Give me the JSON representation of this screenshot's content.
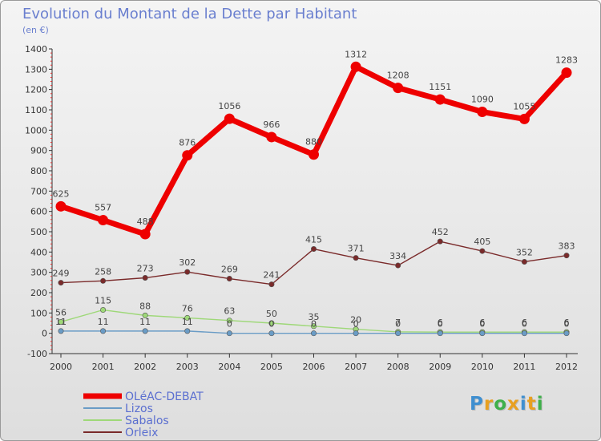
{
  "chart_data": {
    "type": "line",
    "title": "Evolution du Montant de la Dette par Habitant",
    "subtitle": "(en €)",
    "categories": [
      "2000",
      "2001",
      "2002",
      "2003",
      "2004",
      "2005",
      "2006",
      "2007",
      "2008",
      "2009",
      "2010",
      "2011",
      "2012"
    ],
    "ylim": [
      -100,
      1400
    ],
    "yticks": [
      -100,
      0,
      100,
      200,
      300,
      400,
      500,
      600,
      700,
      800,
      900,
      1000,
      1100,
      1200,
      1300,
      1400
    ],
    "grid": false,
    "legend_position": "bottom-left",
    "series": [
      {
        "name": "Orleix",
        "color": "#7a2a2a",
        "values": [
          249,
          258,
          273,
          302,
          269,
          241,
          415,
          371,
          334,
          452,
          405,
          352,
          383
        ],
        "labels": [
          "249",
          "258",
          "273",
          "302",
          "269",
          "241",
          "415",
          "371",
          "334",
          "452",
          "405",
          "352",
          "383"
        ]
      },
      {
        "name": "Sabalos",
        "color": "#9ed878",
        "values": [
          56,
          115,
          88,
          76,
          63,
          50,
          35,
          20,
          7,
          6,
          6,
          6,
          6
        ],
        "labels": [
          "56",
          "115",
          "88",
          "76",
          "63",
          "50",
          "35",
          "20",
          "7",
          "6",
          "6",
          "6",
          "6"
        ]
      },
      {
        "name": "Lizos",
        "color": "#6a9cc6",
        "values": [
          11,
          11,
          11,
          11,
          0,
          0,
          0,
          0,
          0,
          0,
          0,
          0,
          0
        ],
        "labels": [
          "11",
          "11",
          "11",
          "11",
          "0",
          "0",
          "0",
          "0",
          "0",
          "0",
          "0",
          "0",
          "0"
        ]
      },
      {
        "name": "OLéAC-DEBAT",
        "color": "#ee0000",
        "values": [
          625,
          557,
          488,
          876,
          1056,
          966,
          880,
          1312,
          1208,
          1151,
          1090,
          1055,
          1283
        ],
        "labels": [
          "625",
          "557",
          "488",
          "876",
          "1056",
          "966",
          "880",
          "1312",
          "1208",
          "1151",
          "1090",
          "1055",
          "1283"
        ]
      }
    ],
    "legend": [
      "OLéAC-DEBAT",
      "Lizos",
      "Sabalos",
      "Orleix"
    ]
  },
  "logo": {
    "letters": [
      "P",
      "r",
      "o",
      "x",
      "i",
      "t",
      "i"
    ],
    "colors": [
      "#3f8fd0",
      "#e8a020",
      "#3fb04a",
      "#e8a020",
      "#3f8fd0",
      "#e8a020",
      "#3fb04a"
    ]
  }
}
